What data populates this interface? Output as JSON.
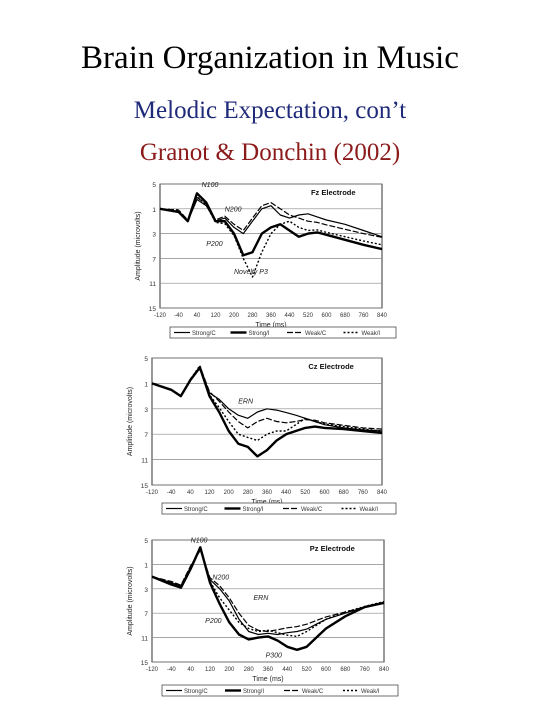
{
  "slide": {
    "title": "Brain Organization in Music",
    "subtitle": "Melodic Expectation, con’t",
    "citation": "Granot & Donchin (2002)"
  },
  "colors": {
    "title": "#000000",
    "subtitle": "#1f2a7a",
    "citation": "#8b1a1a",
    "trace": "#000000",
    "grid": "#888888"
  },
  "chart_data": [
    {
      "type": "line",
      "title": "Fz Electrode",
      "xlabel": "Time (ms)",
      "ylabel": "Amplitude (microvolts)",
      "ylim_top": -5,
      "ylim_bottom": 15,
      "y_ticks": [
        -5,
        -1,
        3,
        7,
        11,
        15
      ],
      "y_tick_labels": [
        "5",
        "1",
        "3",
        "7",
        "11",
        "15"
      ],
      "x_ticks": [
        -120,
        -40,
        40,
        120,
        200,
        280,
        360,
        440,
        520,
        600,
        680,
        760,
        840
      ],
      "x_tick_labels": [
        "-120",
        "-40",
        "40",
        "120",
        "200",
        "280",
        "360",
        "440",
        "520",
        "600",
        "680",
        "760",
        "840"
      ],
      "xlim": [
        -120,
        840
      ],
      "annotations": [
        {
          "text": "N100",
          "x": 60,
          "y": -4.5
        },
        {
          "text": "N200",
          "x": 160,
          "y": -0.6
        },
        {
          "text": "P200",
          "x": 80,
          "y": 5.0
        },
        {
          "text": "Novelty P3",
          "x": 200,
          "y": 9.5
        }
      ],
      "legend": [
        "Strong/C",
        "Strong/I",
        "Weak/C",
        "Weak/I"
      ],
      "series": [
        {
          "name": "Strong/C",
          "x": [
            -120,
            -40,
            0,
            40,
            80,
            120,
            160,
            200,
            240,
            280,
            320,
            360,
            400,
            440,
            480,
            520,
            560,
            600,
            680,
            760,
            840
          ],
          "y": [
            -1,
            -0.5,
            1,
            -2.5,
            -1.5,
            1,
            0.5,
            2,
            3,
            1,
            -1,
            -1.5,
            0,
            0.5,
            0,
            -0.2,
            0.3,
            0.8,
            1.5,
            2.5,
            3.5
          ]
        },
        {
          "name": "Strong/I",
          "x": [
            -120,
            -40,
            0,
            40,
            80,
            120,
            160,
            200,
            240,
            280,
            320,
            360,
            400,
            440,
            480,
            520,
            560,
            600,
            680,
            760,
            840
          ],
          "y": [
            -1,
            -0.5,
            1,
            -3.5,
            -2,
            1,
            1,
            3,
            6.5,
            6,
            3,
            2,
            1.5,
            2.5,
            3.5,
            3,
            2.8,
            3.2,
            4,
            4.8,
            5.5
          ]
        },
        {
          "name": "Weak/C",
          "x": [
            -120,
            -40,
            0,
            40,
            80,
            120,
            160,
            200,
            240,
            280,
            320,
            360,
            400,
            440,
            480,
            520,
            560,
            600,
            680,
            760,
            840
          ],
          "y": [
            -1,
            -0.8,
            0.8,
            -2.8,
            -1.8,
            0.8,
            0.2,
            1.5,
            2.5,
            0.5,
            -1.5,
            -2,
            -1,
            0,
            0.5,
            1,
            1.2,
            1.6,
            2.3,
            3,
            3.6
          ]
        },
        {
          "name": "Weak/I",
          "x": [
            -120,
            -40,
            0,
            40,
            80,
            120,
            160,
            200,
            240,
            280,
            320,
            360,
            400,
            440,
            480,
            520,
            560,
            600,
            680,
            760,
            840
          ],
          "y": [
            -1,
            -0.8,
            0.9,
            -3,
            -1.6,
            1.2,
            1.4,
            3.3,
            7,
            10,
            6,
            3,
            1.5,
            1,
            2,
            2.5,
            2.4,
            2.8,
            3.5,
            4.2,
            4.8
          ]
        }
      ]
    },
    {
      "type": "line",
      "title": "Cz Electrode",
      "xlabel": "Time (ms)",
      "ylabel": "Amplitude (microvolts)",
      "ylim_top": -5,
      "ylim_bottom": 15,
      "y_ticks": [
        -5,
        -1,
        3,
        7,
        11,
        15
      ],
      "y_tick_labels": [
        "5",
        "1",
        "3",
        "7",
        "11",
        "15"
      ],
      "x_ticks": [
        -120,
        -40,
        40,
        120,
        200,
        280,
        360,
        440,
        520,
        600,
        680,
        760,
        840
      ],
      "x_tick_labels": [
        "-120",
        "-40",
        "40",
        "120",
        "200",
        "280",
        "360",
        "440",
        "520",
        "600",
        "680",
        "760",
        "840"
      ],
      "xlim": [
        -120,
        840
      ],
      "annotations": [
        {
          "text": "ERN",
          "x": 240,
          "y": 2.2
        }
      ],
      "legend": [
        "Strong/C",
        "Strong/I",
        "Weak/C",
        "Weak/I"
      ],
      "series": [
        {
          "name": "Strong/C",
          "x": [
            -120,
            -40,
            0,
            40,
            80,
            120,
            160,
            200,
            240,
            280,
            320,
            360,
            400,
            440,
            480,
            520,
            560,
            600,
            680,
            760,
            840
          ],
          "y": [
            -1,
            0,
            1,
            -1.5,
            -3.5,
            0.5,
            1.5,
            3,
            4,
            4.5,
            3.5,
            3,
            3.2,
            3.6,
            4,
            4.5,
            5,
            5.5,
            6,
            6.3,
            6.5
          ]
        },
        {
          "name": "Strong/I",
          "x": [
            -120,
            -40,
            0,
            40,
            80,
            120,
            160,
            200,
            240,
            280,
            320,
            360,
            400,
            440,
            480,
            520,
            560,
            600,
            680,
            760,
            840
          ],
          "y": [
            -1,
            0,
            1,
            -1.5,
            -3.5,
            1,
            3.5,
            6.5,
            8.5,
            9,
            10.5,
            9.5,
            8,
            7,
            6.5,
            6,
            5.8,
            6,
            6.2,
            6.5,
            6.8
          ]
        },
        {
          "name": "Weak/C",
          "x": [
            -120,
            -40,
            0,
            40,
            80,
            120,
            160,
            200,
            240,
            280,
            320,
            360,
            400,
            440,
            480,
            520,
            560,
            600,
            680,
            760,
            840
          ],
          "y": [
            -1,
            0,
            1,
            -1.7,
            -3.7,
            0.3,
            1.8,
            3.5,
            5,
            6,
            5,
            4.5,
            5,
            5.2,
            5,
            4.7,
            4.8,
            5.2,
            5.6,
            6,
            6.2
          ]
        },
        {
          "name": "Weak/I",
          "x": [
            -120,
            -40,
            0,
            40,
            80,
            120,
            160,
            200,
            240,
            280,
            320,
            360,
            400,
            440,
            480,
            520,
            560,
            600,
            680,
            760,
            840
          ],
          "y": [
            -1,
            0,
            1,
            -1.6,
            -3.8,
            0.8,
            2.8,
            5,
            7,
            7.5,
            8,
            7,
            6.5,
            6.5,
            5.5,
            4.5,
            5,
            5.4,
            5.8,
            6.2,
            6.5
          ]
        }
      ]
    },
    {
      "type": "line",
      "title": "Pz Electrode",
      "xlabel": "Time (ms)",
      "ylabel": "Amplitude (microvolts)",
      "ylim_top": -5,
      "ylim_bottom": 15,
      "y_ticks": [
        -5,
        -1,
        3,
        7,
        11,
        15
      ],
      "y_tick_labels": [
        "5",
        "1",
        "3",
        "7",
        "11",
        "15"
      ],
      "x_ticks": [
        -120,
        -40,
        40,
        120,
        200,
        280,
        360,
        440,
        520,
        600,
        680,
        760,
        840
      ],
      "x_tick_labels": [
        "-120",
        "-40",
        "40",
        "120",
        "200",
        "280",
        "360",
        "440",
        "520",
        "600",
        "680",
        "760",
        "840"
      ],
      "xlim": [
        -120,
        840
      ],
      "annotations": [
        {
          "text": "N100",
          "x": 40,
          "y": -4.6
        },
        {
          "text": "N200",
          "x": 130,
          "y": 1.5
        },
        {
          "text": "P200",
          "x": 100,
          "y": 8.6
        },
        {
          "text": "ERN",
          "x": 300,
          "y": 4.8
        },
        {
          "text": "P300",
          "x": 350,
          "y": 14.3
        }
      ],
      "legend": [
        "Strong/C",
        "Strong/I",
        "Weak/C",
        "Weak/I"
      ],
      "series": [
        {
          "name": "Strong/C",
          "x": [
            -120,
            -40,
            0,
            40,
            80,
            120,
            160,
            200,
            240,
            280,
            320,
            360,
            400,
            440,
            480,
            520,
            560,
            600,
            680,
            760,
            840
          ],
          "y": [
            1,
            2,
            2.5,
            -0.5,
            -3.5,
            1.5,
            3,
            5,
            8,
            10,
            10.5,
            10.3,
            10.5,
            10.2,
            10,
            9.6,
            8.8,
            8,
            7,
            6,
            5.2
          ]
        },
        {
          "name": "Strong/I",
          "x": [
            -120,
            -40,
            0,
            40,
            80,
            120,
            160,
            200,
            240,
            280,
            320,
            360,
            400,
            440,
            480,
            520,
            560,
            600,
            680,
            760,
            840
          ],
          "y": [
            1,
            2.3,
            2.8,
            -0.3,
            -3.8,
            2,
            5.5,
            8.5,
            10.5,
            11.3,
            11,
            10.8,
            11.5,
            12.5,
            13,
            12.5,
            11,
            9.5,
            7.5,
            6,
            5.3
          ]
        },
        {
          "name": "Weak/C",
          "x": [
            -120,
            -40,
            0,
            40,
            80,
            120,
            160,
            200,
            240,
            280,
            320,
            360,
            400,
            440,
            480,
            520,
            560,
            600,
            680,
            760,
            840
          ],
          "y": [
            1,
            1.8,
            2.4,
            -0.8,
            -3.3,
            1.2,
            2.5,
            4.5,
            7,
            9,
            9.8,
            10,
            9.7,
            9.4,
            9.2,
            8.8,
            8.2,
            7.6,
            6.8,
            6,
            5.4
          ]
        },
        {
          "name": "Weak/I",
          "x": [
            -120,
            -40,
            0,
            40,
            80,
            120,
            160,
            200,
            240,
            280,
            320,
            360,
            400,
            440,
            480,
            520,
            560,
            600,
            680,
            760,
            840
          ],
          "y": [
            1,
            2.1,
            2.6,
            -0.6,
            -3.6,
            1.8,
            4.5,
            6.5,
            8.5,
            9.5,
            10,
            9.8,
            10.2,
            10.6,
            10.8,
            10,
            9,
            8,
            6.8,
            5.9,
            5.1
          ]
        }
      ]
    }
  ]
}
